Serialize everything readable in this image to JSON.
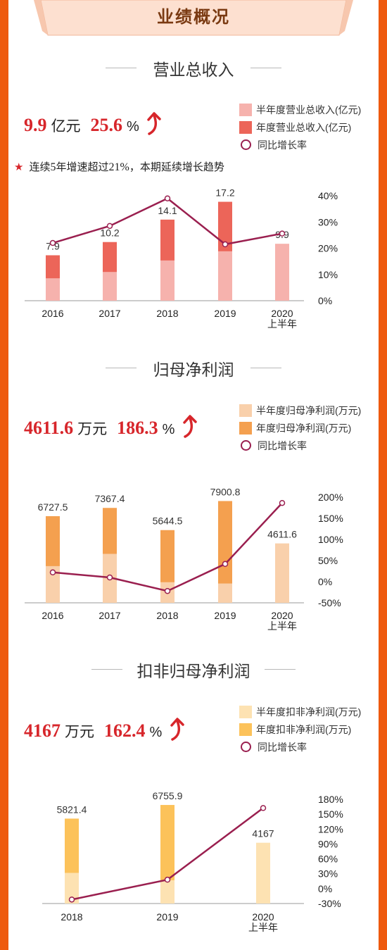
{
  "banner": {
    "title": "业绩概况"
  },
  "sections": [
    {
      "title": "营业总收入",
      "stat_value": "9.9",
      "stat_unit": "亿元",
      "stat_growth": "25.6",
      "stat_pct": "%",
      "note": {
        "prefix": "连续",
        "num1": "5",
        "mid": "年增速超过",
        "num2": "21%",
        "suffix": "，本期延续增长趋势"
      },
      "legend": [
        "半年度营业总收入(亿元)",
        "年度营业总收入(亿元)",
        "同比增长率"
      ]
    },
    {
      "title": "归母净利润",
      "stat_value": "4611.6",
      "stat_unit": "万元",
      "stat_growth": "186.3",
      "stat_pct": "%",
      "legend": [
        "半年度归母净利润(万元)",
        "年度归母净利润(万元)",
        "同比增长率"
      ]
    },
    {
      "title": "扣非归母净利润",
      "stat_value": "4167",
      "stat_unit": "万元",
      "stat_growth": "162.4",
      "stat_pct": "%",
      "legend": [
        "半年度扣非净利润(万元)",
        "年度扣非净利润(万元)",
        "同比增长率"
      ]
    }
  ],
  "chart_data": [
    {
      "type": "bar",
      "categories": [
        "2016",
        "2017",
        "2018",
        "2019",
        "2020\n上半年"
      ],
      "series": [
        {
          "name": "半年度营业总收入(亿元)",
          "values": [
            3.9,
            5.0,
            7.0,
            8.6,
            9.9
          ],
          "color": "#f6b2ad"
        },
        {
          "name": "年度营业总收入(亿元)",
          "values": [
            7.9,
            10.2,
            14.1,
            17.2,
            null
          ],
          "color": "#ec6559"
        },
        {
          "name": "同比增长率",
          "type": "line",
          "values": [
            22,
            28.5,
            39,
            21.5,
            25.6
          ],
          "color": "#9a1f4f"
        }
      ],
      "data_labels": [
        "7.9",
        "10.2",
        "14.1",
        "17.2",
        "9.9"
      ],
      "ylim": [
        0,
        18
      ],
      "y2_ticks": [
        "0%",
        "10%",
        "20%",
        "30%",
        "40%"
      ],
      "y2lim": [
        0,
        40
      ]
    },
    {
      "type": "bar",
      "categories": [
        "2016",
        "2017",
        "2018",
        "2019",
        "2020\n上半年"
      ],
      "series": [
        {
          "name": "半年度归母净利润(万元)",
          "values": [
            2850,
            3800,
            1600,
            1500,
            4611.6
          ],
          "color": "#f9d0ab"
        },
        {
          "name": "年度归母净利润(万元)",
          "values": [
            6727.5,
            7367.4,
            5644.5,
            7900.8,
            null
          ],
          "color": "#f4a04f"
        },
        {
          "name": "同比增长率",
          "type": "line",
          "values": [
            22,
            10,
            -22,
            42,
            186.3
          ],
          "color": "#9a1f4f"
        }
      ],
      "data_labels": [
        "6727.5",
        "7367.4",
        "5644.5",
        "7900.8",
        "4611.6"
      ],
      "ylim": [
        0,
        8200
      ],
      "y2_ticks": [
        "-50%",
        "0%",
        "50%",
        "100%",
        "150%",
        "200%"
      ],
      "y2lim": [
        -50,
        200
      ]
    },
    {
      "type": "bar",
      "categories": [
        "2018",
        "2019",
        "2020\n上半年"
      ],
      "series": [
        {
          "name": "半年度扣非净利润(万元)",
          "values": [
            2100,
            1600,
            4167
          ],
          "color": "#fde2b2"
        },
        {
          "name": "年度扣非净利润(万元)",
          "values": [
            5821.4,
            6755.9,
            null
          ],
          "color": "#fcc25a"
        },
        {
          "name": "同比增长率",
          "type": "line",
          "values": [
            -22,
            18,
            162.4
          ],
          "color": "#9a1f4f"
        }
      ],
      "data_labels": [
        "5821.4",
        "6755.9",
        "4167"
      ],
      "ylim": [
        0,
        7000
      ],
      "y2_ticks": [
        "-30%",
        "0%",
        "30%",
        "60%",
        "90%",
        "120%",
        "150%",
        "180%"
      ],
      "y2lim": [
        -30,
        180
      ]
    }
  ]
}
